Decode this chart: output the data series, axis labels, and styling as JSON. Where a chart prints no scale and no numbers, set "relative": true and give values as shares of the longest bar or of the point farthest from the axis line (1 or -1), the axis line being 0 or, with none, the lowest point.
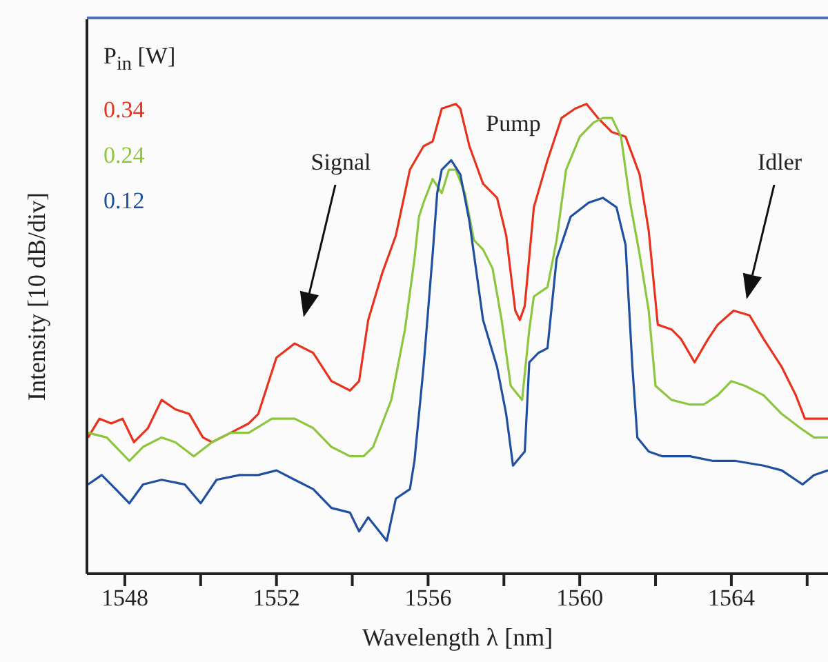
{
  "chart_data": {
    "type": "line",
    "relative": true,
    "marker": "none",
    "legend": "top left",
    "legend_title": "P$_{in}$ [W]",
    "xlabel": "Wavelength λ  [nm]",
    "ylabel": "Intensity  [10 dB/div]",
    "xlim": [
      1547.0,
      1566.55
    ],
    "xticks": [
      1548,
      {
        "value": 1550,
        "label": null
      },
      1552,
      {
        "value": 1554,
        "label": null
      },
      1556,
      {
        "value": 1558,
        "label": null
      },
      1560,
      {
        "value": 1562,
        "label": null
      },
      1564,
      {
        "value": 1566,
        "label": null
      }
    ],
    "annotations": [
      "Pump",
      "Signal",
      "Idler"
    ],
    "series": [
      {
        "name": "0.34",
        "color": "#e8321e",
        "x": [
          1547.03,
          1547.33,
          1547.64,
          1547.94,
          1548.24,
          1548.61,
          1548.97,
          1549.33,
          1549.7,
          1550.06,
          1550.3,
          1550.79,
          1551.27,
          1551.52,
          1552.0,
          1552.48,
          1552.97,
          1553.45,
          1553.94,
          1554.18,
          1554.42,
          1554.79,
          1555.15,
          1555.52,
          1555.88,
          1556.12,
          1556.36,
          1556.73,
          1556.85,
          1557.09,
          1557.45,
          1557.82,
          1558.06,
          1558.3,
          1558.42,
          1558.55,
          1558.79,
          1559.15,
          1559.52,
          1559.88,
          1560.18,
          1560.48,
          1560.85,
          1561.21,
          1561.58,
          1561.82,
          1562.06,
          1562.42,
          1562.67,
          1563.03,
          1563.39,
          1563.64,
          1564.06,
          1564.48,
          1564.85,
          1565.33,
          1565.7,
          1565.94,
          1566.3,
          1566.55
        ],
        "values": [
          0.29,
          0.33,
          0.32,
          0.33,
          0.28,
          0.31,
          0.37,
          0.35,
          0.34,
          0.29,
          0.28,
          0.3,
          0.32,
          0.34,
          0.46,
          0.49,
          0.47,
          0.41,
          0.39,
          0.41,
          0.54,
          0.64,
          0.72,
          0.86,
          0.91,
          0.92,
          0.99,
          1.0,
          0.99,
          0.91,
          0.83,
          0.8,
          0.72,
          0.56,
          0.54,
          0.57,
          0.78,
          0.88,
          0.97,
          0.99,
          1.0,
          0.97,
          0.94,
          0.93,
          0.85,
          0.73,
          0.53,
          0.52,
          0.5,
          0.45,
          0.5,
          0.53,
          0.56,
          0.55,
          0.5,
          0.44,
          0.38,
          0.33,
          0.33,
          0.33
        ]
      },
      {
        "name": "0.24",
        "color": "#8cc63f",
        "x": [
          1547.03,
          1547.52,
          1548.12,
          1548.48,
          1548.97,
          1549.33,
          1549.82,
          1550.3,
          1550.79,
          1551.27,
          1551.88,
          1552.48,
          1552.97,
          1553.45,
          1553.94,
          1554.3,
          1554.55,
          1554.79,
          1555.03,
          1555.39,
          1555.64,
          1555.76,
          1555.88,
          1556.12,
          1556.36,
          1556.55,
          1556.73,
          1556.97,
          1557.21,
          1557.45,
          1557.7,
          1557.94,
          1558.18,
          1558.48,
          1558.67,
          1558.79,
          1559.15,
          1559.39,
          1559.64,
          1560.0,
          1560.36,
          1560.61,
          1560.85,
          1561.09,
          1561.33,
          1561.58,
          1561.82,
          1562.0,
          1562.42,
          1562.91,
          1563.27,
          1563.64,
          1564.0,
          1564.36,
          1564.85,
          1565.33,
          1565.82,
          1566.18,
          1566.55
        ],
        "values": [
          0.3,
          0.29,
          0.24,
          0.27,
          0.29,
          0.28,
          0.25,
          0.28,
          0.3,
          0.3,
          0.33,
          0.33,
          0.31,
          0.27,
          0.25,
          0.25,
          0.27,
          0.32,
          0.37,
          0.52,
          0.67,
          0.76,
          0.79,
          0.84,
          0.81,
          0.86,
          0.86,
          0.81,
          0.71,
          0.69,
          0.65,
          0.54,
          0.4,
          0.37,
          0.52,
          0.59,
          0.61,
          0.71,
          0.86,
          0.93,
          0.96,
          0.97,
          0.97,
          0.93,
          0.79,
          0.68,
          0.56,
          0.4,
          0.37,
          0.36,
          0.36,
          0.38,
          0.41,
          0.4,
          0.38,
          0.34,
          0.31,
          0.29,
          0.29
        ]
      },
      {
        "name": "0.12",
        "color": "#1f4fa0",
        "x": [
          1547.03,
          1547.39,
          1547.76,
          1548.12,
          1548.48,
          1548.97,
          1549.58,
          1550.0,
          1550.42,
          1551.03,
          1551.52,
          1552.0,
          1552.48,
          1552.97,
          1553.45,
          1553.94,
          1554.18,
          1554.42,
          1554.91,
          1555.15,
          1555.52,
          1555.64,
          1555.88,
          1556.12,
          1556.24,
          1556.36,
          1556.61,
          1556.85,
          1557.09,
          1557.45,
          1557.82,
          1558.06,
          1558.24,
          1558.55,
          1558.67,
          1558.91,
          1559.15,
          1559.39,
          1559.76,
          1560.24,
          1560.61,
          1560.97,
          1561.21,
          1561.39,
          1561.52,
          1561.82,
          1562.18,
          1562.91,
          1563.52,
          1564.12,
          1564.85,
          1565.33,
          1565.88,
          1566.18,
          1566.55
        ],
        "values": [
          0.19,
          0.21,
          0.18,
          0.15,
          0.19,
          0.2,
          0.19,
          0.15,
          0.2,
          0.21,
          0.21,
          0.22,
          0.2,
          0.18,
          0.14,
          0.13,
          0.09,
          0.12,
          0.07,
          0.16,
          0.18,
          0.24,
          0.44,
          0.68,
          0.81,
          0.86,
          0.88,
          0.85,
          0.75,
          0.54,
          0.44,
          0.34,
          0.23,
          0.26,
          0.45,
          0.47,
          0.48,
          0.67,
          0.76,
          0.79,
          0.8,
          0.78,
          0.7,
          0.44,
          0.29,
          0.26,
          0.25,
          0.25,
          0.24,
          0.24,
          0.23,
          0.22,
          0.19,
          0.21,
          0.22
        ]
      }
    ]
  }
}
